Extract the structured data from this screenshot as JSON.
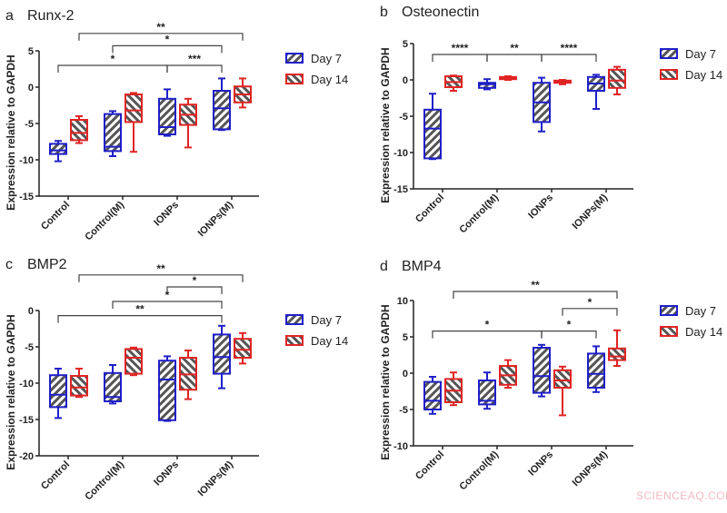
{
  "watermark": "SCIENCEAQ.COM",
  "colors": {
    "Day 7": "#1f1fc8",
    "Day 14": "#e02424",
    "hatch": "#555555"
  },
  "chart_data": [
    {
      "type": "box",
      "panel": "a",
      "title": "Runx-2",
      "ylabel": "Expression relative to GAPDH",
      "ylim": [
        -15,
        5
      ],
      "yticks": [
        5,
        0,
        -5,
        -10,
        -15
      ],
      "categories": [
        "Control",
        "Control(M)",
        "IONPs",
        "IONPs(M)"
      ],
      "legend": "right",
      "series": [
        {
          "name": "Day 7",
          "boxes": [
            [
              -10.2,
              -9.2,
              -8.7,
              -7.8,
              -7.4
            ],
            [
              -9.5,
              -8.8,
              -8.2,
              -3.7,
              -3.3
            ],
            [
              -6.7,
              -6.5,
              -5.5,
              -1.6,
              -0.3
            ],
            [
              -5.9,
              -5.8,
              -2.9,
              -0.5,
              1.2
            ]
          ]
        },
        {
          "name": "Day 14",
          "boxes": [
            [
              -7.7,
              -7.3,
              -6.3,
              -4.5,
              -4.0
            ],
            [
              -8.9,
              -4.8,
              -3.2,
              -1.0,
              -0.8
            ],
            [
              -8.3,
              -5.2,
              -3.8,
              -2.4,
              -1.6
            ],
            [
              -2.8,
              -2.1,
              -1.0,
              0.1,
              1.2
            ]
          ]
        }
      ],
      "significance": [
        {
          "from": [
            "Control",
            "Day 14"
          ],
          "to": [
            "IONPs(M)",
            "Day 14"
          ],
          "y": 7.4,
          "label": "**"
        },
        {
          "from": [
            "Control(M)",
            "Day 7"
          ],
          "to": [
            "IONPs(M)",
            "Day 7"
          ],
          "y": 5.7,
          "label": "*"
        },
        {
          "from": [
            "Control",
            "Day 7"
          ],
          "to": [
            "IONPs",
            "Day 7"
          ],
          "y": 3.0,
          "label": "*"
        },
        {
          "from": [
            "IONPs",
            "Day 7"
          ],
          "to": [
            "IONPs(M)",
            "Day 7"
          ],
          "y": 3.0,
          "label": "***"
        }
      ]
    },
    {
      "type": "box",
      "panel": "b",
      "title": "Osteonectin",
      "ylabel": "Expression relative to GAPDH",
      "ylim": [
        -15,
        5
      ],
      "yticks": [
        5,
        0,
        -5,
        -10,
        -15
      ],
      "categories": [
        "Control",
        "Control(M)",
        "IONPs",
        "IONPs(M)"
      ],
      "legend": "right",
      "series": [
        {
          "name": "Day 7",
          "boxes": [
            [
              -10.9,
              -10.8,
              -6.7,
              -4.1,
              -1.9
            ],
            [
              -1.3,
              -1.1,
              -0.6,
              -0.4,
              0.1
            ],
            [
              -7.1,
              -5.8,
              -3.1,
              -0.4,
              0.3
            ],
            [
              -4.0,
              -1.5,
              -0.5,
              0.4,
              0.7
            ]
          ]
        },
        {
          "name": "Day 14",
          "boxes": [
            [
              -1.5,
              -1.0,
              -0.3,
              0.5,
              0.6
            ],
            [
              0.0,
              0.1,
              0.2,
              0.4,
              0.5
            ],
            [
              -0.6,
              -0.4,
              -0.2,
              -0.1,
              0.0
            ],
            [
              -2.0,
              -1.1,
              -0.1,
              1.4,
              1.8
            ]
          ]
        }
      ],
      "significance": [
        {
          "from": [
            "Control",
            "Day 7"
          ],
          "to": [
            "Control(M)",
            "Day 7"
          ],
          "y": 3.5,
          "label": "****"
        },
        {
          "from": [
            "Control(M)",
            "Day 7"
          ],
          "to": [
            "IONPs",
            "Day 7"
          ],
          "y": 3.5,
          "label": "**"
        },
        {
          "from": [
            "IONPs",
            "Day 7"
          ],
          "to": [
            "IONPs(M)",
            "Day 7"
          ],
          "y": 3.5,
          "label": "****"
        }
      ]
    },
    {
      "type": "box",
      "panel": "c",
      "title": "BMP2",
      "ylabel": "Expression relative to GAPDH",
      "ylim": [
        -20,
        0
      ],
      "yticks": [
        0,
        -5,
        -10,
        -15,
        -20
      ],
      "categories": [
        "Control",
        "Control(M)",
        "IONPs",
        "IONPs(M)"
      ],
      "legend": "right",
      "series": [
        {
          "name": "Day 7",
          "boxes": [
            [
              -14.8,
              -13.3,
              -11.6,
              -8.9,
              -8.0
            ],
            [
              -12.8,
              -12.5,
              -11.9,
              -8.6,
              -7.5
            ],
            [
              -15.2,
              -15.1,
              -9.5,
              -6.9,
              -6.3
            ],
            [
              -10.7,
              -8.7,
              -6.4,
              -3.3,
              -2.1
            ]
          ]
        },
        {
          "name": "Day 14",
          "boxes": [
            [
              -11.9,
              -11.7,
              -10.6,
              -9.0,
              -8.0
            ],
            [
              -8.9,
              -8.7,
              -6.5,
              -5.3,
              -5.1
            ],
            [
              -12.2,
              -10.9,
              -8.8,
              -6.5,
              -5.5
            ],
            [
              -7.3,
              -6.5,
              -5.4,
              -3.9,
              -3.1
            ]
          ]
        }
      ],
      "significance": [
        {
          "from": [
            "Control",
            "Day 14"
          ],
          "to": [
            "IONPs(M)",
            "Day 14"
          ],
          "y": 4.9,
          "label": "**"
        },
        {
          "from": [
            "IONPs",
            "Day 7"
          ],
          "to": [
            "IONPs(M)",
            "Day 7"
          ],
          "y": 3.25,
          "label": "*"
        },
        {
          "from": [
            "Control(M)",
            "Day 7"
          ],
          "to": [
            "IONPs(M)",
            "Day 7"
          ],
          "y": 1.25,
          "label": "*"
        },
        {
          "from": [
            "Control",
            "Day 7"
          ],
          "to": [
            "IONPs(M)",
            "Day 7"
          ],
          "y": -0.7,
          "label": "**"
        }
      ]
    },
    {
      "type": "box",
      "panel": "d",
      "title": "BMP4",
      "ylabel": "Expression relative to GAPDH",
      "ylim": [
        -10,
        10
      ],
      "yticks": [
        10,
        5,
        0,
        -5,
        -10
      ],
      "categories": [
        "Control",
        "Control(M)",
        "IONPs",
        "IONPs(M)"
      ],
      "legend": "right",
      "series": [
        {
          "name": "Day 7",
          "boxes": [
            [
              -5.6,
              -5.0,
              -3.8,
              -1.2,
              -0.5
            ],
            [
              -4.9,
              -4.3,
              -3.8,
              -1.0,
              0.1
            ],
            [
              -3.2,
              -2.7,
              -0.4,
              3.5,
              3.9
            ],
            [
              -2.6,
              -2.0,
              -0.1,
              2.7,
              3.7
            ]
          ]
        },
        {
          "name": "Day 14",
          "boxes": [
            [
              -4.4,
              -4.0,
              -2.4,
              -0.8,
              0.1
            ],
            [
              -2.0,
              -1.6,
              -0.3,
              1.0,
              1.8
            ],
            [
              -5.8,
              -2.0,
              -1.0,
              0.4,
              0.9
            ],
            [
              1.0,
              1.8,
              2.3,
              3.4,
              5.9
            ]
          ]
        }
      ],
      "significance": [
        {
          "from": [
            "Control",
            "Day 14"
          ],
          "to": [
            "IONPs(M)",
            "Day 14"
          ],
          "y": 11.25,
          "label": "**"
        },
        {
          "from": [
            "IONPs",
            "Day 14"
          ],
          "to": [
            "IONPs(M)",
            "Day 14"
          ],
          "y": 8.9,
          "label": "*"
        },
        {
          "from": [
            "Control",
            "Day 7"
          ],
          "to": [
            "IONPs",
            "Day 7"
          ],
          "y": 5.8,
          "label": "*"
        },
        {
          "from": [
            "IONPs",
            "Day 7"
          ],
          "to": [
            "IONPs(M)",
            "Day 7"
          ],
          "y": 5.8,
          "label": "*"
        }
      ]
    }
  ]
}
